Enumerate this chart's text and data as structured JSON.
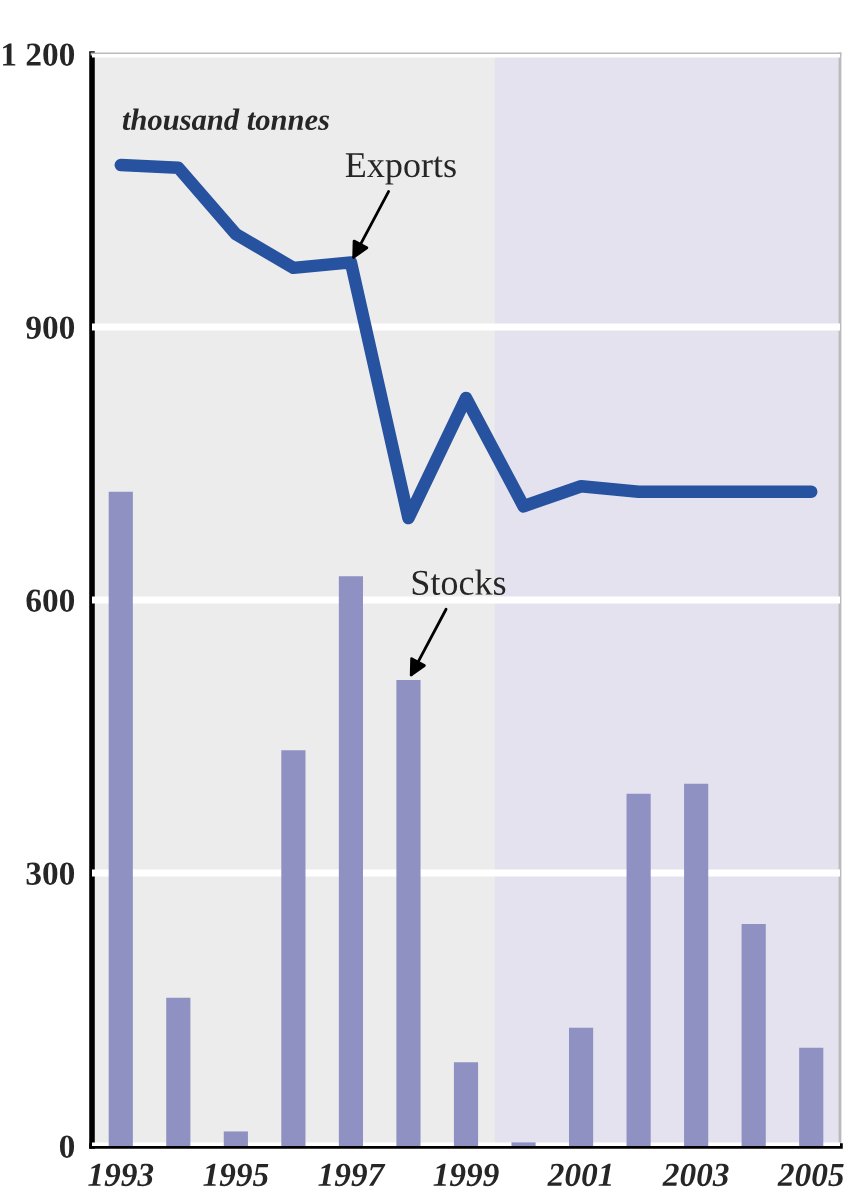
{
  "chart_data": {
    "type": "bar",
    "x": [
      1993,
      1994,
      1995,
      1996,
      1997,
      1998,
      1999,
      2000,
      2001,
      2002,
      2003,
      2004,
      2005
    ],
    "series": [
      {
        "color": "#8e91c2",
        "values": [
          719,
          163,
          16,
          435,
          626,
          512,
          92,
          4,
          130,
          387,
          398,
          244,
          108
        ]
      },
      {
        "type": "line",
        "color": "#27529f",
        "values": [
          1078,
          1075,
          1002,
          965,
          971,
          690,
          822,
          703,
          725,
          719,
          719,
          719,
          719
        ]
      }
    ],
    "xlim": [
      1992.5,
      2005.5
    ],
    "xticks": [
      1993,
      1995,
      1997,
      1999,
      2001,
      2003,
      2005
    ],
    "ylim": [
      0,
      1200
    ],
    "yticks": [
      0,
      300,
      600,
      900,
      {
        "value": 1200,
        "label": "1 200"
      }
    ],
    "grid": "y",
    "bands": [
      {
        "axis": "x",
        "from": 1999.5,
        "to": 2005.5,
        "color": "#e4e2ee"
      }
    ],
    "annotations": [
      "thousand tonnes",
      {
        "text": "Exports",
        "x": 1997,
        "y": 971
      },
      {
        "text": "Stocks",
        "x": 1998,
        "y": 512
      }
    ],
    "legend": false,
    "line_style": "solid",
    "marker": "none"
  }
}
